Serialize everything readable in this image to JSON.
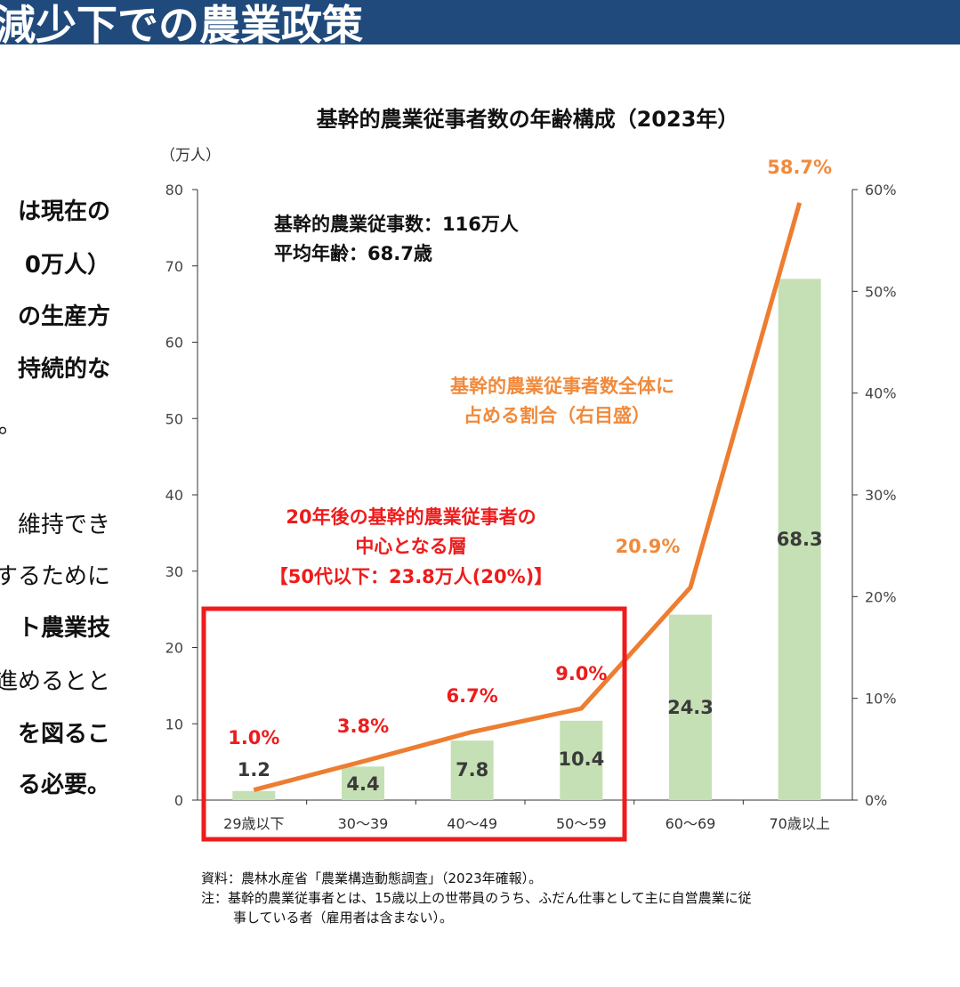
{
  "header": {
    "title": "減少下での農業政策"
  },
  "left_text": {
    "lines": [
      {
        "text": "は現在の",
        "bold": true
      },
      {
        "text": "0万人）",
        "bold": true
      },
      {
        "text": "の生産方",
        "bold": true
      },
      {
        "text": "持続的な",
        "bold": true
      },
      {
        "text": "。",
        "bold": false
      },
      {
        "text": "維持でき",
        "bold": false
      },
      {
        "text": "するために",
        "bold": false
      },
      {
        "text": "ト農業技",
        "bold": true
      },
      {
        "text": "進めるとと",
        "bold": false
      },
      {
        "text": "を図るこ",
        "bold": true
      },
      {
        "text": "る必要。",
        "bold": true
      }
    ]
  },
  "annotations": {
    "summary_line1": "基幹的農業従事数：116万人",
    "summary_line2": "平均年齢：68.7歳",
    "ratio_line1": "基幹的農業従事者数全体に",
    "ratio_line2": "占める割合（右目盛）",
    "highlight_line1": "20年後の基幹的農業従事者の",
    "highlight_line2": "中心となる層",
    "highlight_line3": "【50代以下：23.8万人(20%)】"
  },
  "notes": {
    "source": "資料：農林水産省「農業構造動態調査」（2023年確報）。",
    "note_line1": "注：基幹的農業従事者とは、15歳以上の世帯員のうち、ふだん仕事として主に自営農業に従",
    "note_line2": "事している者（雇用者は含まない）。"
  },
  "chart_data": {
    "type": "bar+line",
    "title": "基幹的農業従事者数の年齢構成（2023年）",
    "ylabel": "（万人）",
    "ylim": [
      0,
      80
    ],
    "yticks": [
      "0",
      "10",
      "20",
      "30",
      "40",
      "50",
      "60",
      "70",
      "80"
    ],
    "y2lim": [
      0,
      60
    ],
    "y2ticks": [
      "0%",
      "10%",
      "20%",
      "30%",
      "40%",
      "50%",
      "60%"
    ],
    "categories": [
      "29歳以下",
      "30～39",
      "40～49",
      "50～59",
      "60～69",
      "70歳以上"
    ],
    "series": [
      {
        "type": "bar",
        "axis": "left",
        "values": [
          1.2,
          4.4,
          7.8,
          10.4,
          24.3,
          68.3
        ],
        "labels": [
          "1.2",
          "4.4",
          "7.8",
          "10.4",
          "24.3",
          "68.3"
        ],
        "color": "#c5e0b4"
      },
      {
        "type": "line",
        "axis": "right",
        "values": [
          1.0,
          3.8,
          6.7,
          9.0,
          20.9,
          58.7
        ],
        "labels": [
          "1.0%",
          "3.8%",
          "6.7%",
          "9.0%",
          "20.9%",
          "58.7%"
        ],
        "color": "#ed7d31"
      }
    ],
    "highlight_range": [
      "29歳以下",
      "50～59"
    ],
    "colors": {
      "highlight": "#ee1c1c",
      "orange_text": "#f08a3c",
      "label_text": "#3a3a3a"
    },
    "grid": false
  }
}
